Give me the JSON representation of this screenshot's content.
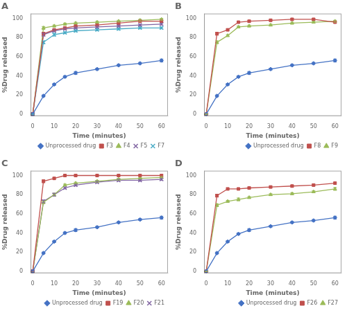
{
  "chart_data": [
    {
      "type": "line",
      "title": "A",
      "xlabel": "Time (minutes)",
      "ylabel": "%Drug released",
      "x": [
        0,
        5,
        10,
        15,
        20,
        30,
        40,
        50,
        60
      ],
      "series": [
        {
          "name": "Unprocessed drug",
          "color": "#4472c4",
          "marker": "diamond",
          "values": [
            0,
            19,
            31,
            39,
            43,
            47,
            51,
            53,
            56
          ],
          "err": [
            0,
            1,
            1,
            1,
            1.5,
            1,
            1,
            1,
            1.5
          ]
        },
        {
          "name": "F3",
          "color": "#c0504d",
          "marker": "square",
          "values": [
            0,
            84,
            88,
            90,
            92,
            93,
            95,
            97,
            97
          ],
          "err": [
            0,
            1.5,
            1,
            1,
            1,
            1,
            1,
            1,
            1
          ]
        },
        {
          "name": "F4",
          "color": "#9bbb59",
          "marker": "triangle",
          "values": [
            0,
            90,
            92,
            94,
            95,
            96,
            97,
            98,
            99
          ],
          "err": [
            0,
            1.5,
            1,
            1,
            1,
            1,
            1,
            1,
            1
          ]
        },
        {
          "name": "F5",
          "color": "#8064a2",
          "marker": "x",
          "values": [
            0,
            83,
            87,
            89,
            90,
            91,
            92,
            93,
            94
          ],
          "err": [
            0,
            1.5,
            1,
            1,
            1,
            1,
            1,
            1,
            1
          ]
        },
        {
          "name": "F7",
          "color": "#4bacc6",
          "marker": "x",
          "values": [
            0,
            75,
            83,
            85,
            87,
            88,
            89,
            90,
            90
          ],
          "err": [
            0,
            1.5,
            1.5,
            1,
            1,
            1,
            1,
            1,
            1
          ]
        }
      ],
      "xlim": [
        -1,
        63
      ],
      "xticks": [
        0,
        10,
        20,
        30,
        40,
        50,
        60
      ],
      "ylim": [
        -2,
        105
      ],
      "yticks": [
        0,
        20,
        40,
        60,
        80,
        100
      ],
      "grid": false,
      "legend": "lower right"
    },
    {
      "type": "line",
      "title": "B",
      "xlabel": "Time (minutes)",
      "ylabel": "%Drug released",
      "x": [
        0,
        5,
        10,
        15,
        20,
        30,
        40,
        50,
        60
      ],
      "series": [
        {
          "name": "Unprocessed drug",
          "color": "#4472c4",
          "marker": "diamond",
          "values": [
            0,
            19,
            31,
            39,
            43,
            47,
            51,
            53,
            56
          ],
          "err": [
            0,
            1,
            1,
            1,
            1.5,
            1,
            1,
            1,
            1.5
          ]
        },
        {
          "name": "F8",
          "color": "#c0504d",
          "marker": "square",
          "values": [
            0,
            84,
            88,
            96,
            97,
            98,
            99,
            99,
            96
          ],
          "err": [
            0,
            1.5,
            1,
            1,
            1,
            1,
            1,
            1,
            1
          ]
        },
        {
          "name": "F9",
          "color": "#9bbb59",
          "marker": "triangle",
          "values": [
            0,
            75,
            82,
            91,
            92,
            93,
            95,
            96,
            97
          ],
          "err": [
            0,
            1.5,
            1,
            1,
            1,
            1,
            1,
            1,
            1
          ]
        }
      ],
      "xlim": [
        -1,
        63
      ],
      "xticks": [
        0,
        10,
        20,
        30,
        40,
        50,
        60
      ],
      "ylim": [
        -2,
        105
      ],
      "yticks": [
        0,
        20,
        40,
        60,
        80,
        100
      ],
      "grid": false,
      "legend": "lower right"
    },
    {
      "type": "line",
      "title": "C",
      "xlabel": "Time (minutes)",
      "ylabel": "%Drug released",
      "x": [
        0,
        5,
        10,
        15,
        20,
        30,
        40,
        50,
        60
      ],
      "series": [
        {
          "name": "Unprocessed drug",
          "color": "#4472c4",
          "marker": "diamond",
          "values": [
            0,
            19,
            31,
            40,
            43,
            46,
            51,
            54,
            56
          ],
          "err": [
            0,
            1,
            1,
            1,
            1.5,
            1,
            1,
            1,
            1.5
          ]
        },
        {
          "name": "F19",
          "color": "#c0504d",
          "marker": "square",
          "values": [
            0,
            94,
            97,
            100,
            100,
            100,
            100,
            100,
            100
          ],
          "err": [
            0,
            1.5,
            1,
            1,
            1,
            1,
            1,
            1,
            1
          ]
        },
        {
          "name": "F20",
          "color": "#9bbb59",
          "marker": "triangle",
          "values": [
            0,
            72,
            80,
            90,
            92,
            94,
            96,
            97,
            98
          ],
          "err": [
            0,
            1.5,
            1.5,
            1,
            1,
            1,
            1,
            1,
            1
          ]
        },
        {
          "name": "F21",
          "color": "#8064a2",
          "marker": "x",
          "values": [
            0,
            73,
            80,
            87,
            90,
            93,
            95,
            95,
            96
          ],
          "err": [
            0,
            1.5,
            1.5,
            1,
            1,
            1,
            1,
            1,
            1
          ]
        }
      ],
      "xlim": [
        -1,
        63
      ],
      "xticks": [
        0,
        10,
        20,
        30,
        40,
        50,
        60
      ],
      "ylim": [
        -2,
        105
      ],
      "yticks": [
        0,
        20,
        40,
        60,
        80,
        100
      ],
      "grid": false,
      "legend": "lower right"
    },
    {
      "type": "line",
      "title": "D",
      "xlabel": "Time (minutes)",
      "ylabel": "%Drug released",
      "x": [
        0,
        5,
        10,
        15,
        20,
        30,
        40,
        50,
        60
      ],
      "series": [
        {
          "name": "Unprocessed drug",
          "color": "#4472c4",
          "marker": "diamond",
          "values": [
            0,
            19,
            31,
            39,
            43,
            47,
            51,
            53,
            56
          ],
          "err": [
            0,
            1,
            1,
            1,
            1.5,
            1,
            1,
            1,
            1.5
          ]
        },
        {
          "name": "F26",
          "color": "#c0504d",
          "marker": "square",
          "values": [
            0,
            79,
            86,
            86,
            87,
            88,
            89,
            90,
            92
          ],
          "err": [
            0,
            1.5,
            1,
            1,
            1,
            1,
            1,
            1,
            1
          ]
        },
        {
          "name": "F27",
          "color": "#9bbb59",
          "marker": "triangle",
          "values": [
            0,
            69,
            73,
            75,
            77,
            80,
            81,
            83,
            86
          ],
          "err": [
            0,
            1.5,
            1,
            1.5,
            1,
            1,
            1,
            1,
            1.5
          ]
        }
      ],
      "xlim": [
        -1,
        63
      ],
      "xticks": [
        0,
        10,
        20,
        30,
        40,
        50,
        60
      ],
      "ylim": [
        -2,
        105
      ],
      "yticks": [
        0,
        20,
        40,
        60,
        80,
        100
      ],
      "grid": false,
      "legend": "lower right"
    }
  ]
}
